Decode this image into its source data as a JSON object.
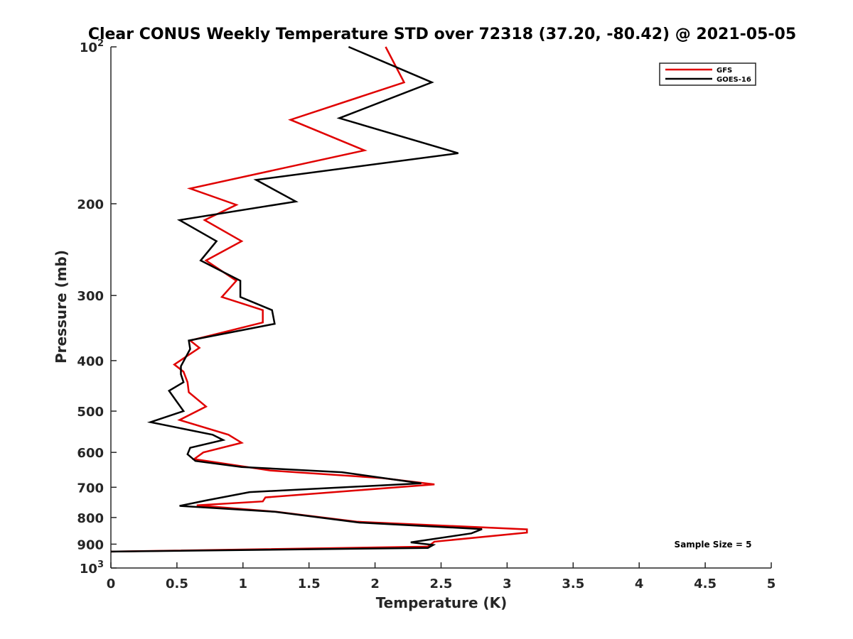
{
  "chart_data": {
    "type": "line",
    "title": "Clear CONUS Weekly Temperature STD over 72318 (37.20, -80.42) @ 2021-05-05",
    "xlabel": "Temperature (K)",
    "ylabel": "Pressure (mb)",
    "xlim": [
      0,
      5
    ],
    "ylim": [
      100,
      1000
    ],
    "y_scale": "log",
    "y_reversed": true,
    "x_ticks": [
      0,
      0.5,
      1,
      1.5,
      2,
      2.5,
      3,
      3.5,
      4,
      4.5,
      5
    ],
    "x_tick_labels": [
      "0",
      "0.5",
      "1",
      "1.5",
      "2",
      "2.5",
      "3",
      "3.5",
      "4",
      "4.5",
      "5"
    ],
    "y_ticks": [
      100,
      200,
      300,
      400,
      500,
      600,
      700,
      800,
      900,
      1000
    ],
    "y_tick_labels": [
      "10^2",
      "200",
      "300",
      "400",
      "500",
      "600",
      "700",
      "800",
      "900",
      "10^3"
    ],
    "grid": false,
    "legend_position": "top-right",
    "annotation": "Sample Size = 5",
    "series": [
      {
        "name": "GFS",
        "color": "#e00000",
        "points": [
          [
            2.08,
            100
          ],
          [
            2.22,
            117
          ],
          [
            1.36,
            138
          ],
          [
            1.92,
            158
          ],
          [
            0.6,
            187
          ],
          [
            0.95,
            201
          ],
          [
            0.71,
            215
          ],
          [
            0.99,
            236
          ],
          [
            0.72,
            257
          ],
          [
            0.95,
            281
          ],
          [
            0.84,
            302
          ],
          [
            1.15,
            320
          ],
          [
            1.15,
            338
          ],
          [
            0.6,
            366
          ],
          [
            0.67,
            378
          ],
          [
            0.48,
            407
          ],
          [
            0.55,
            420
          ],
          [
            0.58,
            440
          ],
          [
            0.59,
            460
          ],
          [
            0.72,
            490
          ],
          [
            0.52,
            520
          ],
          [
            0.89,
            555
          ],
          [
            0.99,
            575
          ],
          [
            0.7,
            600
          ],
          [
            0.63,
            618
          ],
          [
            1.21,
            650
          ],
          [
            2.05,
            672
          ],
          [
            2.45,
            691
          ],
          [
            1.17,
            732
          ],
          [
            1.15,
            745
          ],
          [
            0.65,
            758
          ],
          [
            1.25,
            780
          ],
          [
            1.86,
            815
          ],
          [
            3.15,
            843
          ],
          [
            3.15,
            855
          ],
          [
            2.45,
            890
          ],
          [
            2.4,
            910
          ],
          [
            0.0,
            930
          ]
        ]
      },
      {
        "name": "GOES-16",
        "color": "#000000",
        "points": [
          [
            1.8,
            100
          ],
          [
            2.43,
            117
          ],
          [
            1.73,
            137
          ],
          [
            2.63,
            160
          ],
          [
            1.1,
            180
          ],
          [
            1.4,
            198
          ],
          [
            0.52,
            215
          ],
          [
            0.8,
            236
          ],
          [
            0.68,
            257
          ],
          [
            0.98,
            281
          ],
          [
            0.98,
            302
          ],
          [
            1.22,
            320
          ],
          [
            1.24,
            340
          ],
          [
            0.59,
            366
          ],
          [
            0.6,
            380
          ],
          [
            0.53,
            410
          ],
          [
            0.53,
            425
          ],
          [
            0.55,
            440
          ],
          [
            0.44,
            457
          ],
          [
            0.5,
            480
          ],
          [
            0.55,
            500
          ],
          [
            0.3,
            525
          ],
          [
            0.77,
            555
          ],
          [
            0.85,
            568
          ],
          [
            0.6,
            588
          ],
          [
            0.58,
            605
          ],
          [
            0.64,
            623
          ],
          [
            0.99,
            640
          ],
          [
            1.75,
            655
          ],
          [
            2.35,
            688
          ],
          [
            1.05,
            715
          ],
          [
            0.72,
            742
          ],
          [
            0.52,
            760
          ],
          [
            1.24,
            780
          ],
          [
            1.88,
            818
          ],
          [
            2.81,
            842
          ],
          [
            2.73,
            858
          ],
          [
            2.27,
            893
          ],
          [
            2.44,
            903
          ],
          [
            2.4,
            915
          ],
          [
            0.0,
            930
          ]
        ]
      }
    ]
  }
}
